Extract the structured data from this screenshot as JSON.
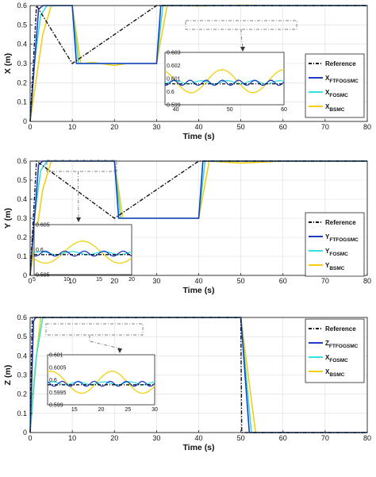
{
  "chart_data": [
    {
      "type": "line",
      "ylabel": "X (m)",
      "xlabel": "Time (s)",
      "xlim": [
        0,
        80
      ],
      "ylim": [
        0,
        0.6
      ],
      "xticks": [
        "0",
        "10",
        "20",
        "30",
        "40",
        "50",
        "60",
        "70",
        "80"
      ],
      "yticks": [
        "0",
        "0.1",
        "0.2",
        "0.3",
        "0.4",
        "0.5",
        "0.6"
      ],
      "grid": true,
      "legend": {
        "placement": "bottom-right",
        "entries": [
          {
            "label": "Reference",
            "sub": "",
            "color": "#111111",
            "dash": true
          },
          {
            "label": "X",
            "sub": "FTFOGSMC",
            "color": "#1f3cc8",
            "dash": false
          },
          {
            "label": "X",
            "sub": "FOSMC",
            "color": "#35e0e0",
            "dash": false
          },
          {
            "label": "X",
            "sub": "BSMC",
            "color": "#f2d00d",
            "dash": false
          }
        ]
      },
      "series": [
        {
          "name": "Reference",
          "x": [
            0,
            1.5,
            10,
            30,
            80
          ],
          "y": [
            0,
            0.6,
            0.3,
            0.6,
            0.6
          ]
        },
        {
          "name": "XFTFOGSMC",
          "x": [
            0,
            2,
            3,
            10,
            11,
            30,
            31,
            80
          ],
          "y": [
            0,
            0.58,
            0.6,
            0.6,
            0.3,
            0.3,
            0.6,
            0.6
          ]
        },
        {
          "name": "XFOSMC",
          "x": [
            0,
            1,
            2.5,
            4,
            10,
            11.5,
            30,
            31.5,
            80
          ],
          "y": [
            0,
            0.3,
            0.55,
            0.6,
            0.6,
            0.3,
            0.3,
            0.6,
            0.6
          ]
        },
        {
          "name": "XBSMC",
          "x": [
            0,
            1,
            3,
            5,
            10,
            12,
            15,
            20,
            23,
            30,
            32.5,
            40,
            50,
            60,
            80
          ],
          "y": [
            0,
            0.15,
            0.45,
            0.6,
            0.6,
            0.3,
            0.305,
            0.29,
            0.3,
            0.3,
            0.6,
            0.598,
            0.602,
            0.6,
            0.6
          ]
        }
      ],
      "inset": {
        "xlim": [
          38,
          60
        ],
        "ylim": [
          0.599,
          0.603
        ],
        "xticks": [
          "40",
          "50",
          "60"
        ],
        "yticks": [
          "0.599",
          "0.6",
          "0.601",
          "0.602",
          "0.603"
        ]
      }
    },
    {
      "type": "line",
      "ylabel": "Y (m)",
      "xlabel": "Time (s)",
      "xlim": [
        0,
        80
      ],
      "ylim": [
        0,
        0.6
      ],
      "xticks": [
        "0",
        "10",
        "20",
        "30",
        "40",
        "50",
        "60",
        "70",
        "80"
      ],
      "yticks": [
        "0",
        "0.1",
        "0.2",
        "0.3",
        "0.4",
        "0.5",
        "0.6"
      ],
      "grid": true,
      "legend": {
        "placement": "bottom-right",
        "entries": [
          {
            "label": "Reference",
            "sub": "",
            "color": "#111111",
            "dash": true
          },
          {
            "label": "Y",
            "sub": "FTFOGSMC",
            "color": "#1f3cc8",
            "dash": false
          },
          {
            "label": "Y",
            "sub": "FOSMC",
            "color": "#35e0e0",
            "dash": false
          },
          {
            "label": "Y",
            "sub": "BSMC",
            "color": "#f2d00d",
            "dash": false
          }
        ]
      },
      "series": [
        {
          "name": "Reference",
          "x": [
            0,
            1.5,
            20,
            40,
            80
          ],
          "y": [
            0,
            0.6,
            0.3,
            0.6,
            0.6
          ]
        },
        {
          "name": "YFTFOGSMC",
          "x": [
            0,
            2,
            3,
            20,
            21,
            40,
            41,
            80
          ],
          "y": [
            0,
            0.58,
            0.6,
            0.6,
            0.3,
            0.3,
            0.6,
            0.6
          ]
        },
        {
          "name": "YFOSMC",
          "x": [
            0,
            1,
            2.5,
            4,
            20,
            21.5,
            40,
            41.5,
            80
          ],
          "y": [
            0,
            0.3,
            0.55,
            0.6,
            0.6,
            0.3,
            0.3,
            0.6,
            0.6
          ]
        },
        {
          "name": "YBSMC",
          "x": [
            0,
            1,
            3,
            5,
            20,
            22,
            30,
            40,
            42.5,
            50,
            60,
            80
          ],
          "y": [
            0,
            0.15,
            0.45,
            0.6,
            0.6,
            0.3,
            0.3,
            0.3,
            0.6,
            0.59,
            0.6,
            0.6
          ]
        }
      ],
      "inset": {
        "xlim": [
          5,
          20
        ],
        "ylim": [
          0.595,
          0.605
        ],
        "xticks": [
          "5",
          "10",
          "15",
          "20"
        ],
        "yticks": [
          "0.595",
          "0.6",
          "0.605"
        ]
      }
    },
    {
      "type": "line",
      "ylabel": "Z (m)",
      "xlabel": "Time (s)",
      "xlim": [
        0,
        80
      ],
      "ylim": [
        0,
        0.6
      ],
      "xticks": [
        "0",
        "10",
        "20",
        "30",
        "40",
        "50",
        "60",
        "70",
        "80"
      ],
      "yticks": [
        "0",
        "0.1",
        "0.2",
        "0.3",
        "0.4",
        "0.5",
        "0.6"
      ],
      "grid": true,
      "legend": {
        "placement": "top-right",
        "entries": [
          {
            "label": "Reference",
            "sub": "",
            "color": "#111111",
            "dash": true
          },
          {
            "label": "Z",
            "sub": "FTFOGSMC",
            "color": "#1f3cc8",
            "dash": false
          },
          {
            "label": "X",
            "sub": "FOSMC",
            "color": "#35e0e0",
            "dash": false
          },
          {
            "label": "X",
            "sub": "BSMC",
            "color": "#f2d00d",
            "dash": false
          }
        ]
      },
      "series": [
        {
          "name": "Reference",
          "x": [
            0,
            0.5,
            50,
            50.2,
            80
          ],
          "y": [
            0,
            0.6,
            0.6,
            0,
            0
          ]
        },
        {
          "name": "ZFTFOGSMC",
          "x": [
            0,
            0.8,
            1.3,
            50,
            52,
            80
          ],
          "y": [
            0,
            0.58,
            0.6,
            0.6,
            0,
            0
          ]
        },
        {
          "name": "XFOSMC",
          "x": [
            0,
            1.5,
            3,
            50,
            52.5,
            80
          ],
          "y": [
            0,
            0.4,
            0.6,
            0.6,
            0,
            0
          ]
        },
        {
          "name": "XBSMC",
          "x": [
            0,
            1,
            2.5,
            50,
            53.5,
            80
          ],
          "y": [
            0,
            0.3,
            0.6,
            0.6,
            0,
            0
          ]
        }
      ],
      "inset": {
        "xlim": [
          10,
          30
        ],
        "ylim": [
          0.599,
          0.601
        ],
        "xticks": [
          "15",
          "20",
          "25",
          "30"
        ],
        "yticks": [
          "0.599",
          "0.5995",
          "0.6",
          "0.6005",
          "0.601"
        ]
      }
    }
  ]
}
